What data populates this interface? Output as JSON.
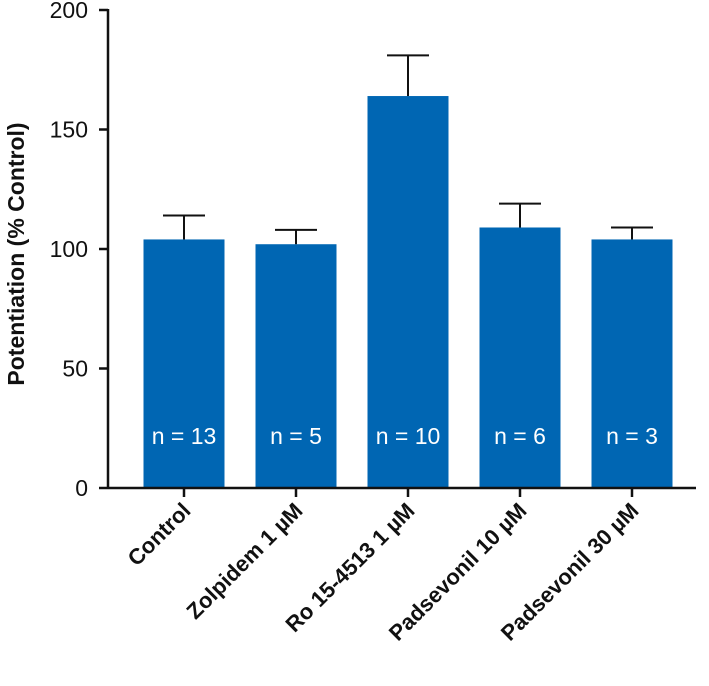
{
  "chart_data": {
    "type": "bar",
    "title": "",
    "xlabel": "",
    "ylabel": "Potentiation (% Control)",
    "ylim": [
      0,
      200
    ],
    "yticks": [
      0,
      50,
      100,
      150,
      200
    ],
    "grid": false,
    "bar_color": "#0066b3",
    "categories": [
      "Control",
      "Zolpidem 1 µM",
      "Ro 15-4513 1 µM",
      "Padsevonil 10 µM",
      "Padsevonil 30 µM"
    ],
    "values": [
      104,
      102,
      164,
      109,
      104
    ],
    "error_upper": [
      10,
      6,
      17,
      10,
      5
    ],
    "annotations": [
      "n = 13",
      "n = 5",
      "n = 10",
      "n = 6",
      "n = 3"
    ]
  }
}
